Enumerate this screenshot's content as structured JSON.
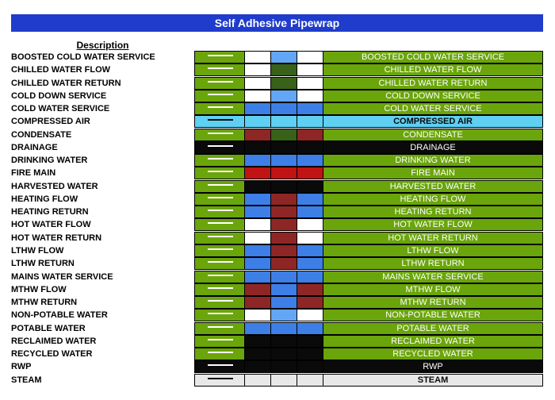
{
  "title": "Self Adhesive Pipewrap",
  "description_header": "Description",
  "colors": {
    "green": "#6aa50b",
    "white": "#ffffff",
    "blue": "#3d7fe6",
    "lightblue": "#62a6f5",
    "darkgreen": "#38611a",
    "red": "#c01313",
    "maroon": "#8f2626",
    "black": "#0a0a0a",
    "cyan": "#5fd0f2",
    "grey": "#e8e8e8",
    "title_bg": "#1f3ccc"
  },
  "rows": [
    {
      "label": "BOOSTED COLD WATER SERVICE",
      "tape_label": "BOOSTED COLD WATER SERVICE",
      "base": "green",
      "bands": [
        "white",
        "lightblue",
        "white"
      ],
      "text_color": "white",
      "arrow": "white"
    },
    {
      "label": "CHILLED WATER FLOW",
      "tape_label": "CHILLED WATER FLOW",
      "base": "green",
      "bands": [
        "white",
        "darkgreen",
        "white"
      ],
      "text_color": "white",
      "arrow": "white"
    },
    {
      "label": "CHILLED WATER RETURN",
      "tape_label": "CHILLED WATER RETURN",
      "base": "green",
      "bands": [
        "white",
        "darkgreen",
        "white"
      ],
      "text_color": "white",
      "arrow": "white"
    },
    {
      "label": "COLD DOWN SERVICE",
      "tape_label": "COLD DOWN SERVICE",
      "base": "green",
      "bands": [
        "white",
        "lightblue",
        "white"
      ],
      "text_color": "white",
      "arrow": "white"
    },
    {
      "label": "COLD WATER SERVICE",
      "tape_label": "COLD WATER SERVICE",
      "base": "green",
      "bands": [
        "blue",
        "blue",
        "blue"
      ],
      "text_color": "white",
      "arrow": "white"
    },
    {
      "label": "COMPRESSED AIR",
      "tape_label": "COMPRESSED AIR",
      "base": "cyan",
      "bands": [
        "cyan",
        "cyan",
        "cyan"
      ],
      "text_color": "black",
      "arrow": "black"
    },
    {
      "label": "CONDENSATE",
      "tape_label": "CONDENSATE",
      "base": "green",
      "bands": [
        "maroon",
        "darkgreen",
        "maroon"
      ],
      "text_color": "white",
      "arrow": "white"
    },
    {
      "label": "DRAINAGE",
      "tape_label": "DRAINAGE",
      "base": "black",
      "bands": [
        "black",
        "black",
        "black"
      ],
      "text_color": "white",
      "arrow": "white"
    },
    {
      "label": "DRINKING WATER",
      "tape_label": "DRINKING WATER",
      "base": "green",
      "bands": [
        "blue",
        "blue",
        "blue"
      ],
      "text_color": "white",
      "arrow": "white"
    },
    {
      "label": "FIRE MAIN",
      "tape_label": "FIRE MAIN",
      "base": "green",
      "bands": [
        "red",
        "red",
        "red"
      ],
      "text_color": "white",
      "arrow": "white"
    },
    {
      "label": "HARVESTED WATER",
      "tape_label": "HARVESTED WATER",
      "base": "green",
      "bands": [
        "black",
        "black",
        "black"
      ],
      "text_color": "white",
      "arrow": "white"
    },
    {
      "label": "HEATING FLOW",
      "tape_label": "HEATING FLOW",
      "base": "green",
      "bands": [
        "blue",
        "maroon",
        "blue"
      ],
      "text_color": "white",
      "arrow": "white"
    },
    {
      "label": "HEATING RETURN",
      "tape_label": "HEATING RETURN",
      "base": "green",
      "bands": [
        "blue",
        "maroon",
        "blue"
      ],
      "text_color": "white",
      "arrow": "white"
    },
    {
      "label": "HOT WATER FLOW",
      "tape_label": "HOT WATER FLOW",
      "base": "green",
      "bands": [
        "white",
        "maroon",
        "white"
      ],
      "text_color": "white",
      "arrow": "white"
    },
    {
      "label": "HOT WATER RETURN",
      "tape_label": "HOT WATER RETURN",
      "base": "green",
      "bands": [
        "white",
        "maroon",
        "white"
      ],
      "text_color": "white",
      "arrow": "white"
    },
    {
      "label": "LTHW FLOW",
      "tape_label": "LTHW FLOW",
      "base": "green",
      "bands": [
        "blue",
        "maroon",
        "blue"
      ],
      "text_color": "white",
      "arrow": "white"
    },
    {
      "label": "LTHW RETURN",
      "tape_label": "LTHW RETURN",
      "base": "green",
      "bands": [
        "blue",
        "maroon",
        "blue"
      ],
      "text_color": "white",
      "arrow": "white"
    },
    {
      "label": "MAINS WATER SERVICE",
      "tape_label": "MAINS WATER SERVICE",
      "base": "green",
      "bands": [
        "blue",
        "blue",
        "blue"
      ],
      "text_color": "white",
      "arrow": "white"
    },
    {
      "label": "MTHW FLOW",
      "tape_label": "MTHW FLOW",
      "base": "green",
      "bands": [
        "maroon",
        "blue",
        "maroon"
      ],
      "text_color": "white",
      "arrow": "white"
    },
    {
      "label": "MTHW RETURN",
      "tape_label": "MTHW RETURN",
      "base": "green",
      "bands": [
        "maroon",
        "blue",
        "maroon"
      ],
      "text_color": "white",
      "arrow": "white"
    },
    {
      "label": "NON-POTABLE WATER",
      "tape_label": "NON-POTABLE WATER",
      "base": "green",
      "bands": [
        "white",
        "lightblue",
        "white"
      ],
      "text_color": "white",
      "arrow": "white"
    },
    {
      "label": "POTABLE WATER",
      "tape_label": "POTABLE WATER",
      "base": "green",
      "bands": [
        "blue",
        "blue",
        "blue"
      ],
      "text_color": "white",
      "arrow": "white"
    },
    {
      "label": "RECLAIMED WATER",
      "tape_label": "RECLAIMED WATER",
      "base": "green",
      "bands": [
        "black",
        "black",
        "black"
      ],
      "text_color": "white",
      "arrow": "white"
    },
    {
      "label": "RECYCLED WATER",
      "tape_label": "RECYCLED WATER",
      "base": "green",
      "bands": [
        "black",
        "black",
        "black"
      ],
      "text_color": "white",
      "arrow": "white"
    },
    {
      "label": "RWP",
      "tape_label": "RWP",
      "base": "black",
      "bands": [
        "black",
        "black",
        "black"
      ],
      "text_color": "white",
      "arrow": "white"
    },
    {
      "label": "STEAM",
      "tape_label": "STEAM",
      "base": "grey",
      "bands": [
        "grey",
        "grey",
        "grey"
      ],
      "text_color": "black",
      "arrow": "black"
    }
  ]
}
